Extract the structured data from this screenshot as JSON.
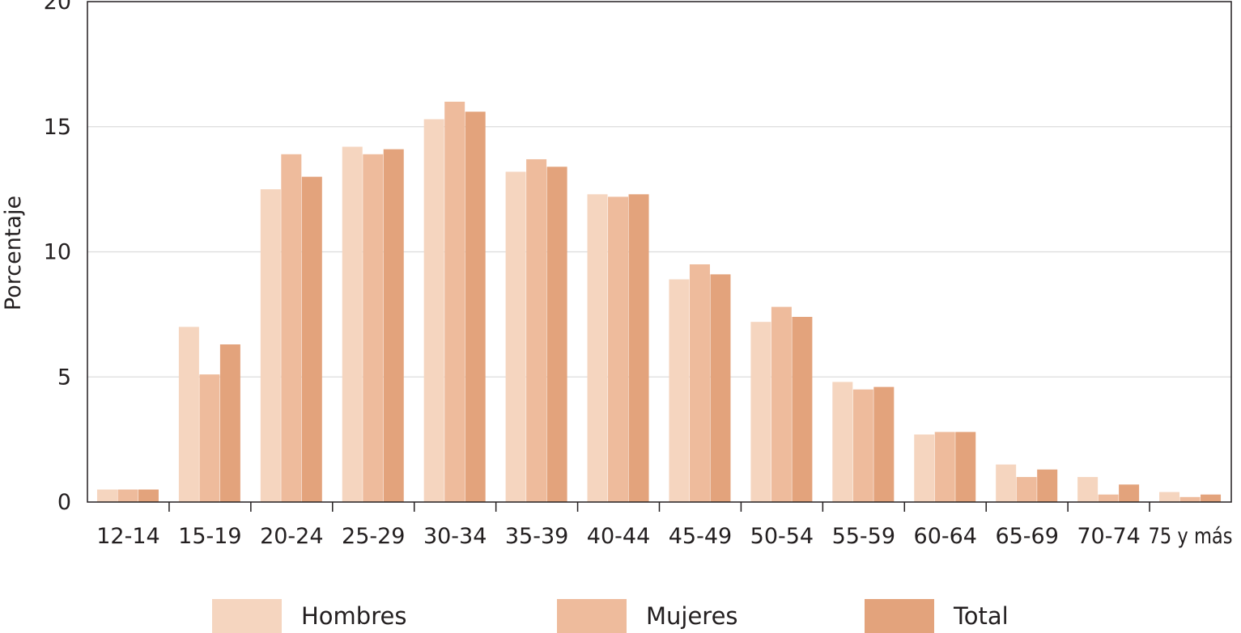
{
  "chart_data": {
    "type": "bar",
    "title": "",
    "xlabel": "",
    "ylabel": "Porcentaje",
    "ylim": [
      0,
      20
    ],
    "yticks": [
      0,
      5,
      10,
      15,
      20
    ],
    "grid": true,
    "legend_position": "bottom",
    "categories": [
      "12-14",
      "15-19",
      "20-24",
      "25-29",
      "30-34",
      "35-39",
      "40-44",
      "45-49",
      "50-54",
      "55-59",
      "60-64",
      "65-69",
      "70-74",
      "75 y más"
    ],
    "series": [
      {
        "name": "Hombres",
        "color": "#f5d5bf",
        "values": [
          0.5,
          7.0,
          12.5,
          14.2,
          15.3,
          13.2,
          12.3,
          8.9,
          7.2,
          4.8,
          2.7,
          1.5,
          1.0,
          0.4
        ]
      },
      {
        "name": "Mujeres",
        "color": "#eebb9c",
        "values": [
          0.5,
          5.1,
          13.9,
          13.9,
          16.0,
          13.7,
          12.2,
          9.5,
          7.8,
          4.5,
          2.8,
          1.0,
          0.3,
          0.2
        ]
      },
      {
        "name": "Total",
        "color": "#e3a37c",
        "values": [
          0.5,
          6.3,
          13.0,
          14.1,
          15.6,
          13.4,
          12.3,
          9.1,
          7.4,
          4.6,
          2.8,
          1.3,
          0.7,
          0.3
        ]
      }
    ]
  }
}
